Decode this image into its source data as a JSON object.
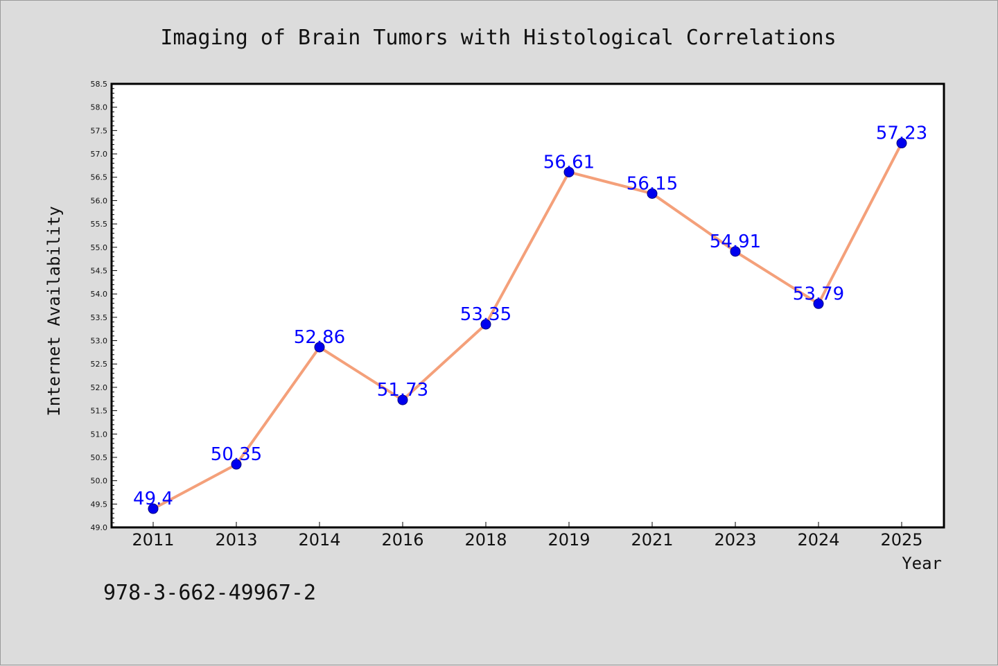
{
  "chart_data": {
    "type": "line",
    "title": "Imaging of Brain Tumors with Histological Correlations",
    "xlabel": "Year",
    "ylabel": "Internet Availability",
    "categories": [
      "2011",
      "2013",
      "2014",
      "2016",
      "2018",
      "2019",
      "2021",
      "2023",
      "2024",
      "2025"
    ],
    "series": [
      {
        "values": [
          49.4,
          50.35,
          52.86,
          51.73,
          53.35,
          56.61,
          56.15,
          54.91,
          53.79,
          57.23
        ],
        "labels": [
          "49.4",
          "50.35",
          "52.86",
          "51.73",
          "53.35",
          "56.61",
          "56.15",
          "54.91",
          "53.79",
          "57.23"
        ],
        "line_color": "#f4a07a",
        "marker_color": "#0000ee",
        "label_color": "#0000ff"
      }
    ],
    "ylim": [
      49.0,
      58.5
    ],
    "ytick_step": 0.5,
    "yticks": [
      "49.0",
      "49.5",
      "50.0",
      "50.5",
      "51.0",
      "51.5",
      "52.0",
      "52.5",
      "53.0",
      "53.5",
      "54.0",
      "54.5",
      "55.0",
      "55.5",
      "56.0",
      "56.5",
      "57.0",
      "57.5",
      "58.0",
      "58.5"
    ],
    "grid": false,
    "legend": "none",
    "background_color": "#dcdcdc",
    "plot_background_color": "#ffffff"
  },
  "footnote": "978-3-662-49967-2"
}
